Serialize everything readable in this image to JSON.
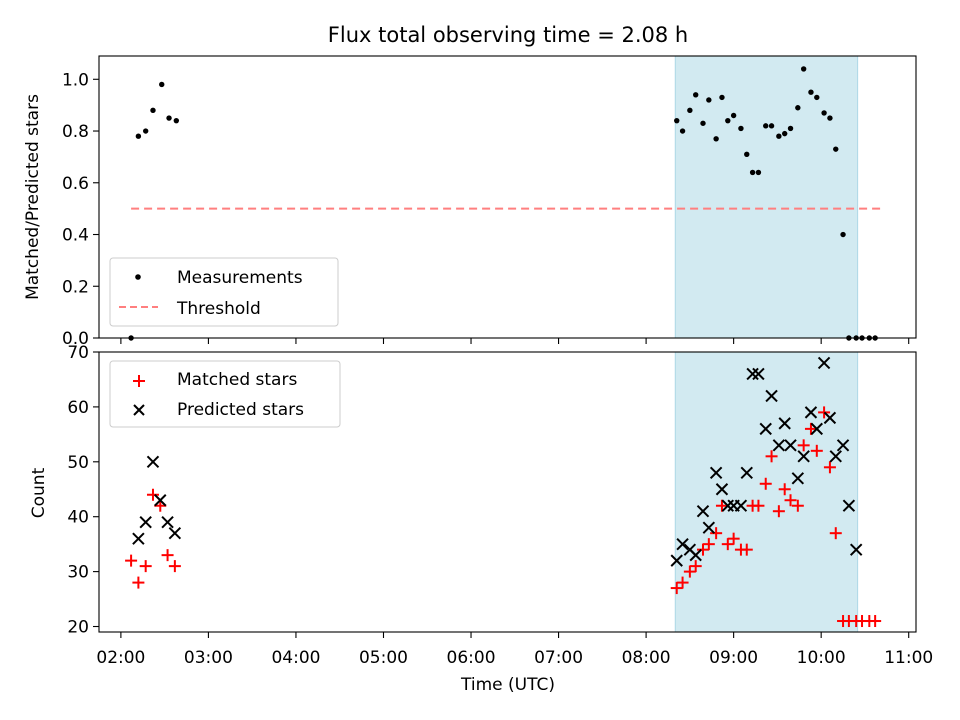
{
  "chart_data": {
    "type": "scatter",
    "title": "Flux total observing time = 2.08 h",
    "xlabel": "Time (UTC)",
    "x_ticks": [
      "02:00",
      "03:00",
      "04:00",
      "05:00",
      "06:00",
      "07:00",
      "08:00",
      "09:00",
      "10:00",
      "11:00"
    ],
    "xlim": [
      "01:45",
      "11:05"
    ],
    "observing_window": [
      "08:20",
      "10:25"
    ],
    "observing_window_color": "#add8e6",
    "top": {
      "ylabel": "Matched/Predicted stars",
      "ylim": [
        0,
        1.09
      ],
      "y_ticks": [
        "0.0",
        "0.2",
        "0.4",
        "0.6",
        "0.8",
        "1.0"
      ],
      "threshold": {
        "value": 0.5,
        "x_range": [
          "02:07",
          "10:42"
        ],
        "color": "#ff7f7f"
      },
      "legend": {
        "position": "lower-left",
        "entries": [
          "Measurements",
          "Threshold"
        ]
      },
      "series": [
        {
          "name": "Measurements",
          "color": "#000000",
          "x": [
            "02:07",
            "02:12",
            "02:17",
            "02:22",
            "02:28",
            "02:33",
            "02:38",
            "08:21",
            "08:25",
            "08:30",
            "08:34",
            "08:39",
            "08:43",
            "08:48",
            "08:52",
            "08:56",
            "09:00",
            "09:05",
            "09:09",
            "09:13",
            "09:17",
            "09:22",
            "09:26",
            "09:31",
            "09:35",
            "09:39",
            "09:44",
            "09:48",
            "09:53",
            "09:57",
            "10:02",
            "10:06",
            "10:10",
            "10:15",
            "10:19",
            "10:24",
            "10:28",
            "10:33",
            "10:37"
          ],
          "y": [
            0.0,
            0.78,
            0.8,
            0.88,
            0.98,
            0.85,
            0.84,
            0.84,
            0.8,
            0.88,
            0.94,
            0.83,
            0.92,
            0.77,
            0.93,
            0.84,
            0.86,
            0.81,
            0.71,
            0.64,
            0.64,
            0.82,
            0.82,
            0.78,
            0.79,
            0.81,
            0.89,
            1.04,
            0.95,
            0.93,
            0.87,
            0.85,
            0.73,
            0.4,
            0.0,
            0.0,
            0.0,
            0.0,
            0.0
          ]
        }
      ]
    },
    "bottom": {
      "ylabel": "Count",
      "ylim": [
        19,
        70
      ],
      "y_ticks": [
        "20",
        "30",
        "40",
        "50",
        "60",
        "70"
      ],
      "legend": {
        "position": "upper-left",
        "entries": [
          "Matched stars",
          "Predicted stars"
        ]
      },
      "series": [
        {
          "name": "Matched stars",
          "marker": "+",
          "color": "#ff0000",
          "x": [
            "02:07",
            "02:12",
            "02:17",
            "02:22",
            "02:27",
            "02:32",
            "02:37",
            "08:21",
            "08:25",
            "08:30",
            "08:34",
            "08:39",
            "08:43",
            "08:48",
            "08:52",
            "08:56",
            "09:00",
            "09:05",
            "09:09",
            "09:13",
            "09:17",
            "09:22",
            "09:26",
            "09:31",
            "09:35",
            "09:39",
            "09:44",
            "09:48",
            "09:53",
            "09:57",
            "10:02",
            "10:06",
            "10:10",
            "10:15",
            "10:19",
            "10:24",
            "10:28",
            "10:33",
            "10:37"
          ],
          "y": [
            32,
            28,
            31,
            44,
            42,
            33,
            31,
            27,
            28,
            30,
            31,
            34,
            35,
            37,
            42,
            35,
            36,
            34,
            34,
            42,
            42,
            46,
            51,
            41,
            45,
            43,
            42,
            53,
            56,
            52,
            59,
            49,
            37,
            21,
            21,
            21,
            21,
            21,
            21
          ]
        },
        {
          "name": "Predicted stars",
          "marker": "x",
          "color": "#000000",
          "x": [
            "02:12",
            "02:17",
            "02:22",
            "02:27",
            "02:32",
            "02:37",
            "08:21",
            "08:25",
            "08:30",
            "08:34",
            "08:39",
            "08:43",
            "08:48",
            "08:52",
            "08:56",
            "09:00",
            "09:05",
            "09:09",
            "09:13",
            "09:17",
            "09:22",
            "09:26",
            "09:31",
            "09:35",
            "09:39",
            "09:44",
            "09:48",
            "09:53",
            "09:57",
            "10:02",
            "10:06",
            "10:10",
            "10:15",
            "10:19",
            "10:24"
          ],
          "y": [
            36,
            39,
            50,
            43,
            39,
            37,
            32,
            35,
            34,
            33,
            41,
            38,
            48,
            45,
            42,
            42,
            42,
            48,
            66,
            66,
            56,
            62,
            53,
            57,
            53,
            47,
            51,
            59,
            56,
            68,
            58,
            51,
            53,
            42,
            34
          ]
        }
      ]
    }
  }
}
